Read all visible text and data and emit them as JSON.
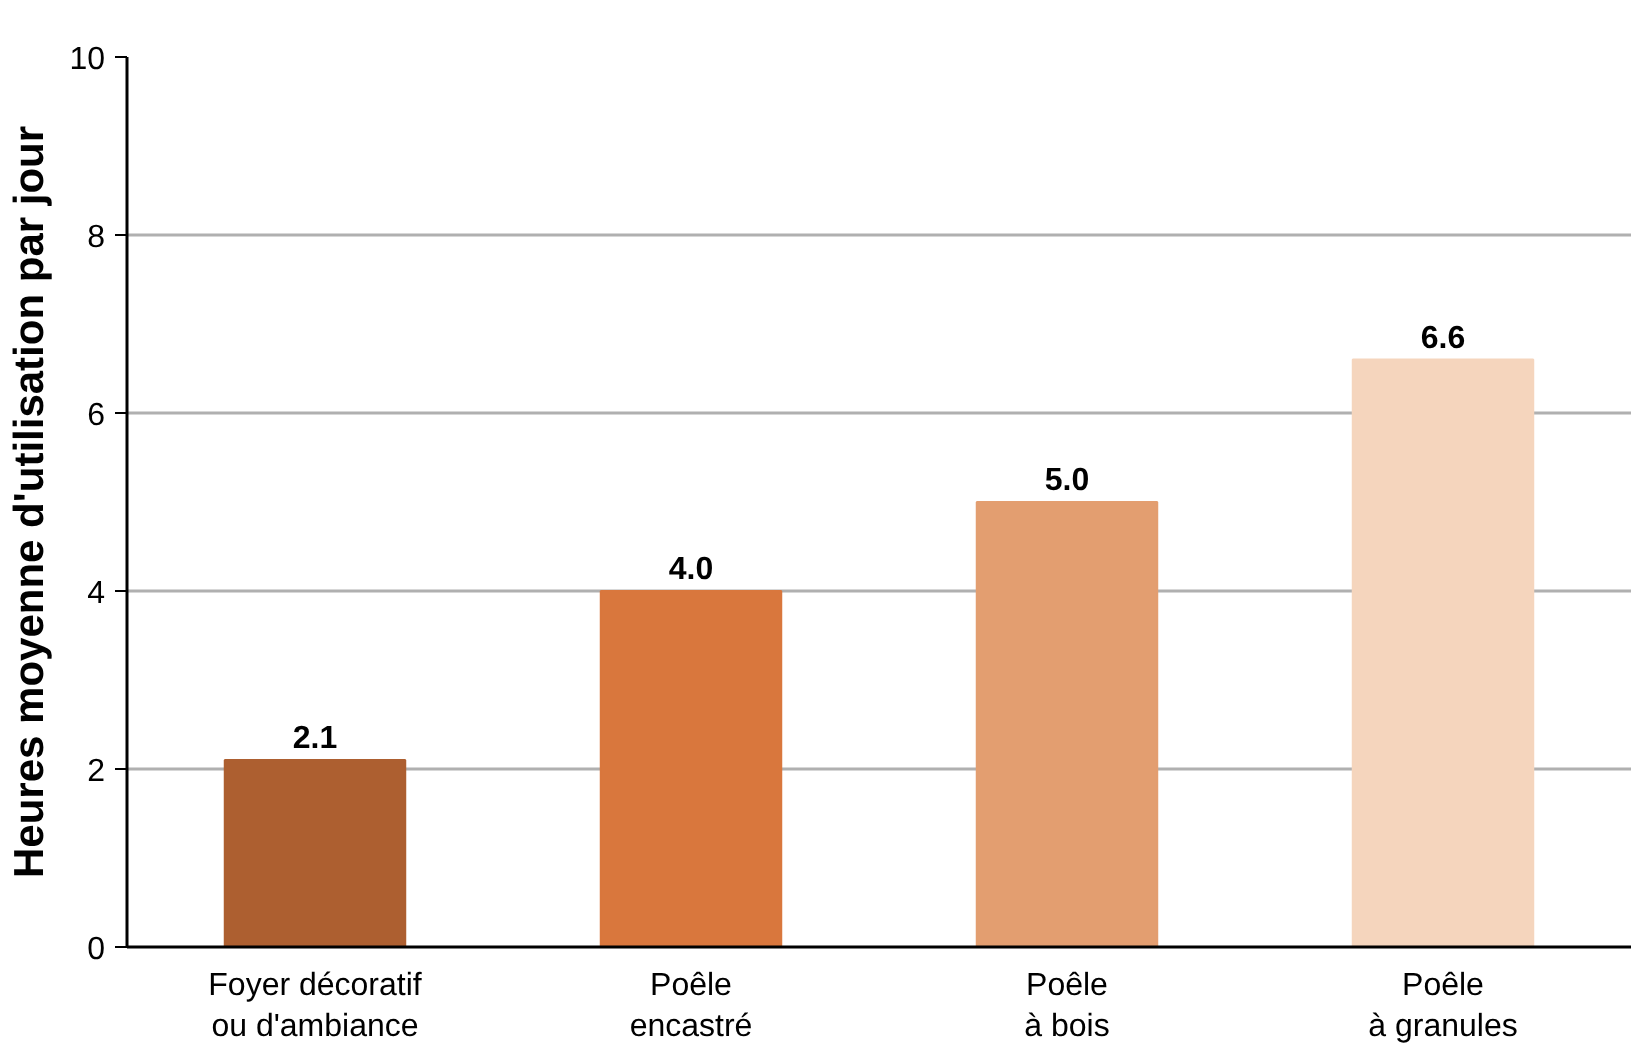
{
  "chart_data": {
    "type": "bar",
    "ylabel": "Heures moyenne d'utilisation par jour",
    "categories": [
      "Foyer décoratif\nou d'ambiance",
      "Poêle\nencastré",
      "Poêle\nà bois",
      "Poêle\nà granules"
    ],
    "values": [
      2.1,
      4.0,
      5.0,
      6.6
    ],
    "colors": [
      "#ad5f30",
      "#d9773d",
      "#e39e70",
      "#f5d5bd"
    ],
    "value_labels": [
      "2.1",
      "4.0",
      "5.0",
      "6.6"
    ],
    "ylim": [
      0,
      10
    ],
    "yticks": [
      0,
      2,
      4,
      6,
      8,
      10
    ],
    "grid": "y"
  }
}
